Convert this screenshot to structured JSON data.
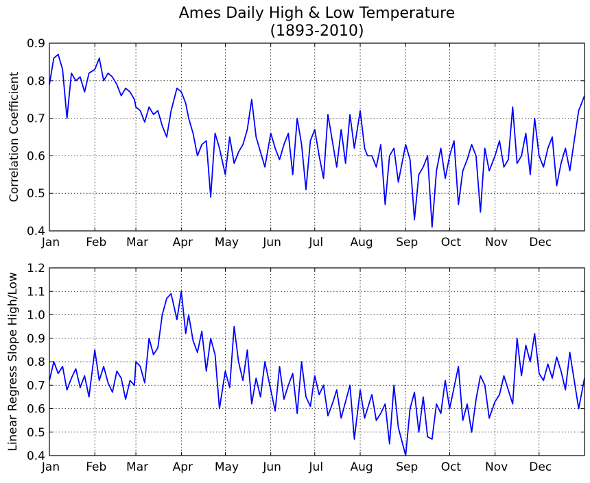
{
  "chart_data": [
    {
      "type": "line",
      "title": "Ames Daily High & Low Temperature",
      "subtitle": "(1893-2010)",
      "ylabel": "Correlation Coefficient",
      "xlabel": "",
      "x_tick_labels": [
        "Jan",
        "Feb",
        "Mar",
        "Apr",
        "May",
        "Jun",
        "Jul",
        "Aug",
        "Sep",
        "Oct",
        "Nov",
        "Dec"
      ],
      "y_tick_labels": [
        "0.4",
        "0.5",
        "0.6",
        "0.7",
        "0.8",
        "0.9"
      ],
      "xlim": [
        1,
        366
      ],
      "ylim": [
        0.4,
        0.9
      ],
      "grid": true,
      "series": [
        {
          "color": "#0000ff",
          "x": [
            1,
            4,
            7,
            10,
            13,
            16,
            19,
            22,
            25,
            28,
            32,
            35,
            38,
            41,
            44,
            47,
            50,
            53,
            56,
            59,
            60,
            63,
            66,
            69,
            72,
            75,
            78,
            81,
            84,
            88,
            91,
            94,
            96,
            99,
            102,
            105,
            108,
            111,
            114,
            117,
            121,
            124,
            127,
            130,
            133,
            136,
            139,
            142,
            145,
            148,
            152,
            155,
            158,
            161,
            164,
            167,
            170,
            173,
            176,
            179,
            182,
            185,
            188,
            191,
            194,
            197,
            200,
            203,
            206,
            209,
            213,
            216,
            218,
            221,
            224,
            227,
            230,
            233,
            236,
            239,
            244,
            247,
            250,
            253,
            256,
            259,
            262,
            265,
            268,
            271,
            274,
            277,
            280,
            283,
            286,
            289,
            292,
            295,
            298,
            301,
            305,
            308,
            311,
            314,
            317,
            320,
            323,
            326,
            329,
            332,
            335,
            338,
            341,
            344,
            347,
            350,
            353,
            356,
            359,
            362,
            366
          ],
          "y": [
            0.79,
            0.86,
            0.87,
            0.83,
            0.7,
            0.82,
            0.8,
            0.81,
            0.77,
            0.82,
            0.83,
            0.86,
            0.8,
            0.82,
            0.81,
            0.79,
            0.76,
            0.78,
            0.77,
            0.75,
            0.73,
            0.72,
            0.69,
            0.73,
            0.71,
            0.72,
            0.68,
            0.65,
            0.72,
            0.78,
            0.77,
            0.74,
            0.7,
            0.66,
            0.6,
            0.63,
            0.64,
            0.49,
            0.66,
            0.62,
            0.55,
            0.65,
            0.58,
            0.61,
            0.63,
            0.67,
            0.75,
            0.65,
            0.61,
            0.57,
            0.66,
            0.62,
            0.59,
            0.63,
            0.66,
            0.55,
            0.7,
            0.63,
            0.51,
            0.64,
            0.67,
            0.6,
            0.54,
            0.71,
            0.64,
            0.57,
            0.67,
            0.58,
            0.71,
            0.62,
            0.72,
            0.62,
            0.6,
            0.6,
            0.57,
            0.63,
            0.47,
            0.6,
            0.62,
            0.53,
            0.63,
            0.59,
            0.43,
            0.55,
            0.57,
            0.6,
            0.41,
            0.56,
            0.62,
            0.54,
            0.6,
            0.64,
            0.47,
            0.56,
            0.59,
            0.63,
            0.6,
            0.45,
            0.62,
            0.56,
            0.6,
            0.64,
            0.57,
            0.59,
            0.73,
            0.58,
            0.6,
            0.66,
            0.55,
            0.7,
            0.6,
            0.57,
            0.62,
            0.65,
            0.52,
            0.58,
            0.62,
            0.56,
            0.64,
            0.72,
            0.76
          ]
        }
      ]
    },
    {
      "type": "line",
      "title": "",
      "ylabel": "Linear Regress Slope High/Low",
      "xlabel": "",
      "x_tick_labels": [
        "Jan",
        "Feb",
        "Mar",
        "Apr",
        "May",
        "Jun",
        "Jul",
        "Aug",
        "Sep",
        "Oct",
        "Nov",
        "Dec"
      ],
      "y_tick_labels": [
        "0.4",
        "0.5",
        "0.6",
        "0.7",
        "0.8",
        "0.9",
        "1.0",
        "1.1",
        "1.2"
      ],
      "xlim": [
        1,
        366
      ],
      "ylim": [
        0.4,
        1.2
      ],
      "grid": true,
      "series": [
        {
          "color": "#0000ff",
          "x": [
            1,
            4,
            7,
            10,
            13,
            16,
            19,
            22,
            25,
            28,
            32,
            35,
            38,
            41,
            44,
            47,
            50,
            53,
            56,
            59,
            60,
            63,
            66,
            69,
            72,
            75,
            78,
            81,
            84,
            88,
            91,
            94,
            96,
            99,
            102,
            105,
            108,
            111,
            114,
            117,
            121,
            124,
            127,
            130,
            133,
            136,
            139,
            142,
            145,
            148,
            152,
            155,
            158,
            161,
            164,
            167,
            170,
            173,
            176,
            179,
            182,
            185,
            188,
            191,
            194,
            197,
            200,
            203,
            206,
            209,
            213,
            216,
            218,
            221,
            224,
            227,
            230,
            233,
            236,
            239,
            244,
            247,
            250,
            253,
            256,
            259,
            262,
            265,
            268,
            271,
            274,
            277,
            280,
            283,
            286,
            289,
            292,
            295,
            298,
            301,
            305,
            308,
            311,
            314,
            317,
            320,
            323,
            326,
            329,
            332,
            335,
            338,
            341,
            344,
            347,
            350,
            353,
            356,
            359,
            362,
            366
          ],
          "y": [
            0.72,
            0.8,
            0.75,
            0.78,
            0.68,
            0.73,
            0.77,
            0.69,
            0.74,
            0.65,
            0.85,
            0.72,
            0.78,
            0.71,
            0.67,
            0.76,
            0.73,
            0.64,
            0.72,
            0.7,
            0.8,
            0.78,
            0.71,
            0.9,
            0.83,
            0.86,
            1.0,
            1.07,
            1.09,
            0.98,
            1.1,
            0.92,
            1.0,
            0.89,
            0.84,
            0.93,
            0.76,
            0.9,
            0.83,
            0.6,
            0.76,
            0.69,
            0.95,
            0.8,
            0.72,
            0.85,
            0.62,
            0.73,
            0.65,
            0.8,
            0.68,
            0.59,
            0.78,
            0.64,
            0.7,
            0.75,
            0.58,
            0.8,
            0.65,
            0.61,
            0.74,
            0.66,
            0.7,
            0.57,
            0.62,
            0.68,
            0.56,
            0.63,
            0.7,
            0.47,
            0.68,
            0.56,
            0.6,
            0.66,
            0.55,
            0.58,
            0.62,
            0.45,
            0.7,
            0.52,
            0.4,
            0.6,
            0.67,
            0.5,
            0.65,
            0.48,
            0.47,
            0.62,
            0.58,
            0.72,
            0.6,
            0.69,
            0.78,
            0.55,
            0.62,
            0.5,
            0.64,
            0.74,
            0.7,
            0.56,
            0.63,
            0.66,
            0.74,
            0.68,
            0.62,
            0.9,
            0.74,
            0.87,
            0.8,
            0.92,
            0.75,
            0.72,
            0.79,
            0.73,
            0.82,
            0.76,
            0.68,
            0.84,
            0.72,
            0.6,
            0.73
          ]
        }
      ]
    }
  ]
}
